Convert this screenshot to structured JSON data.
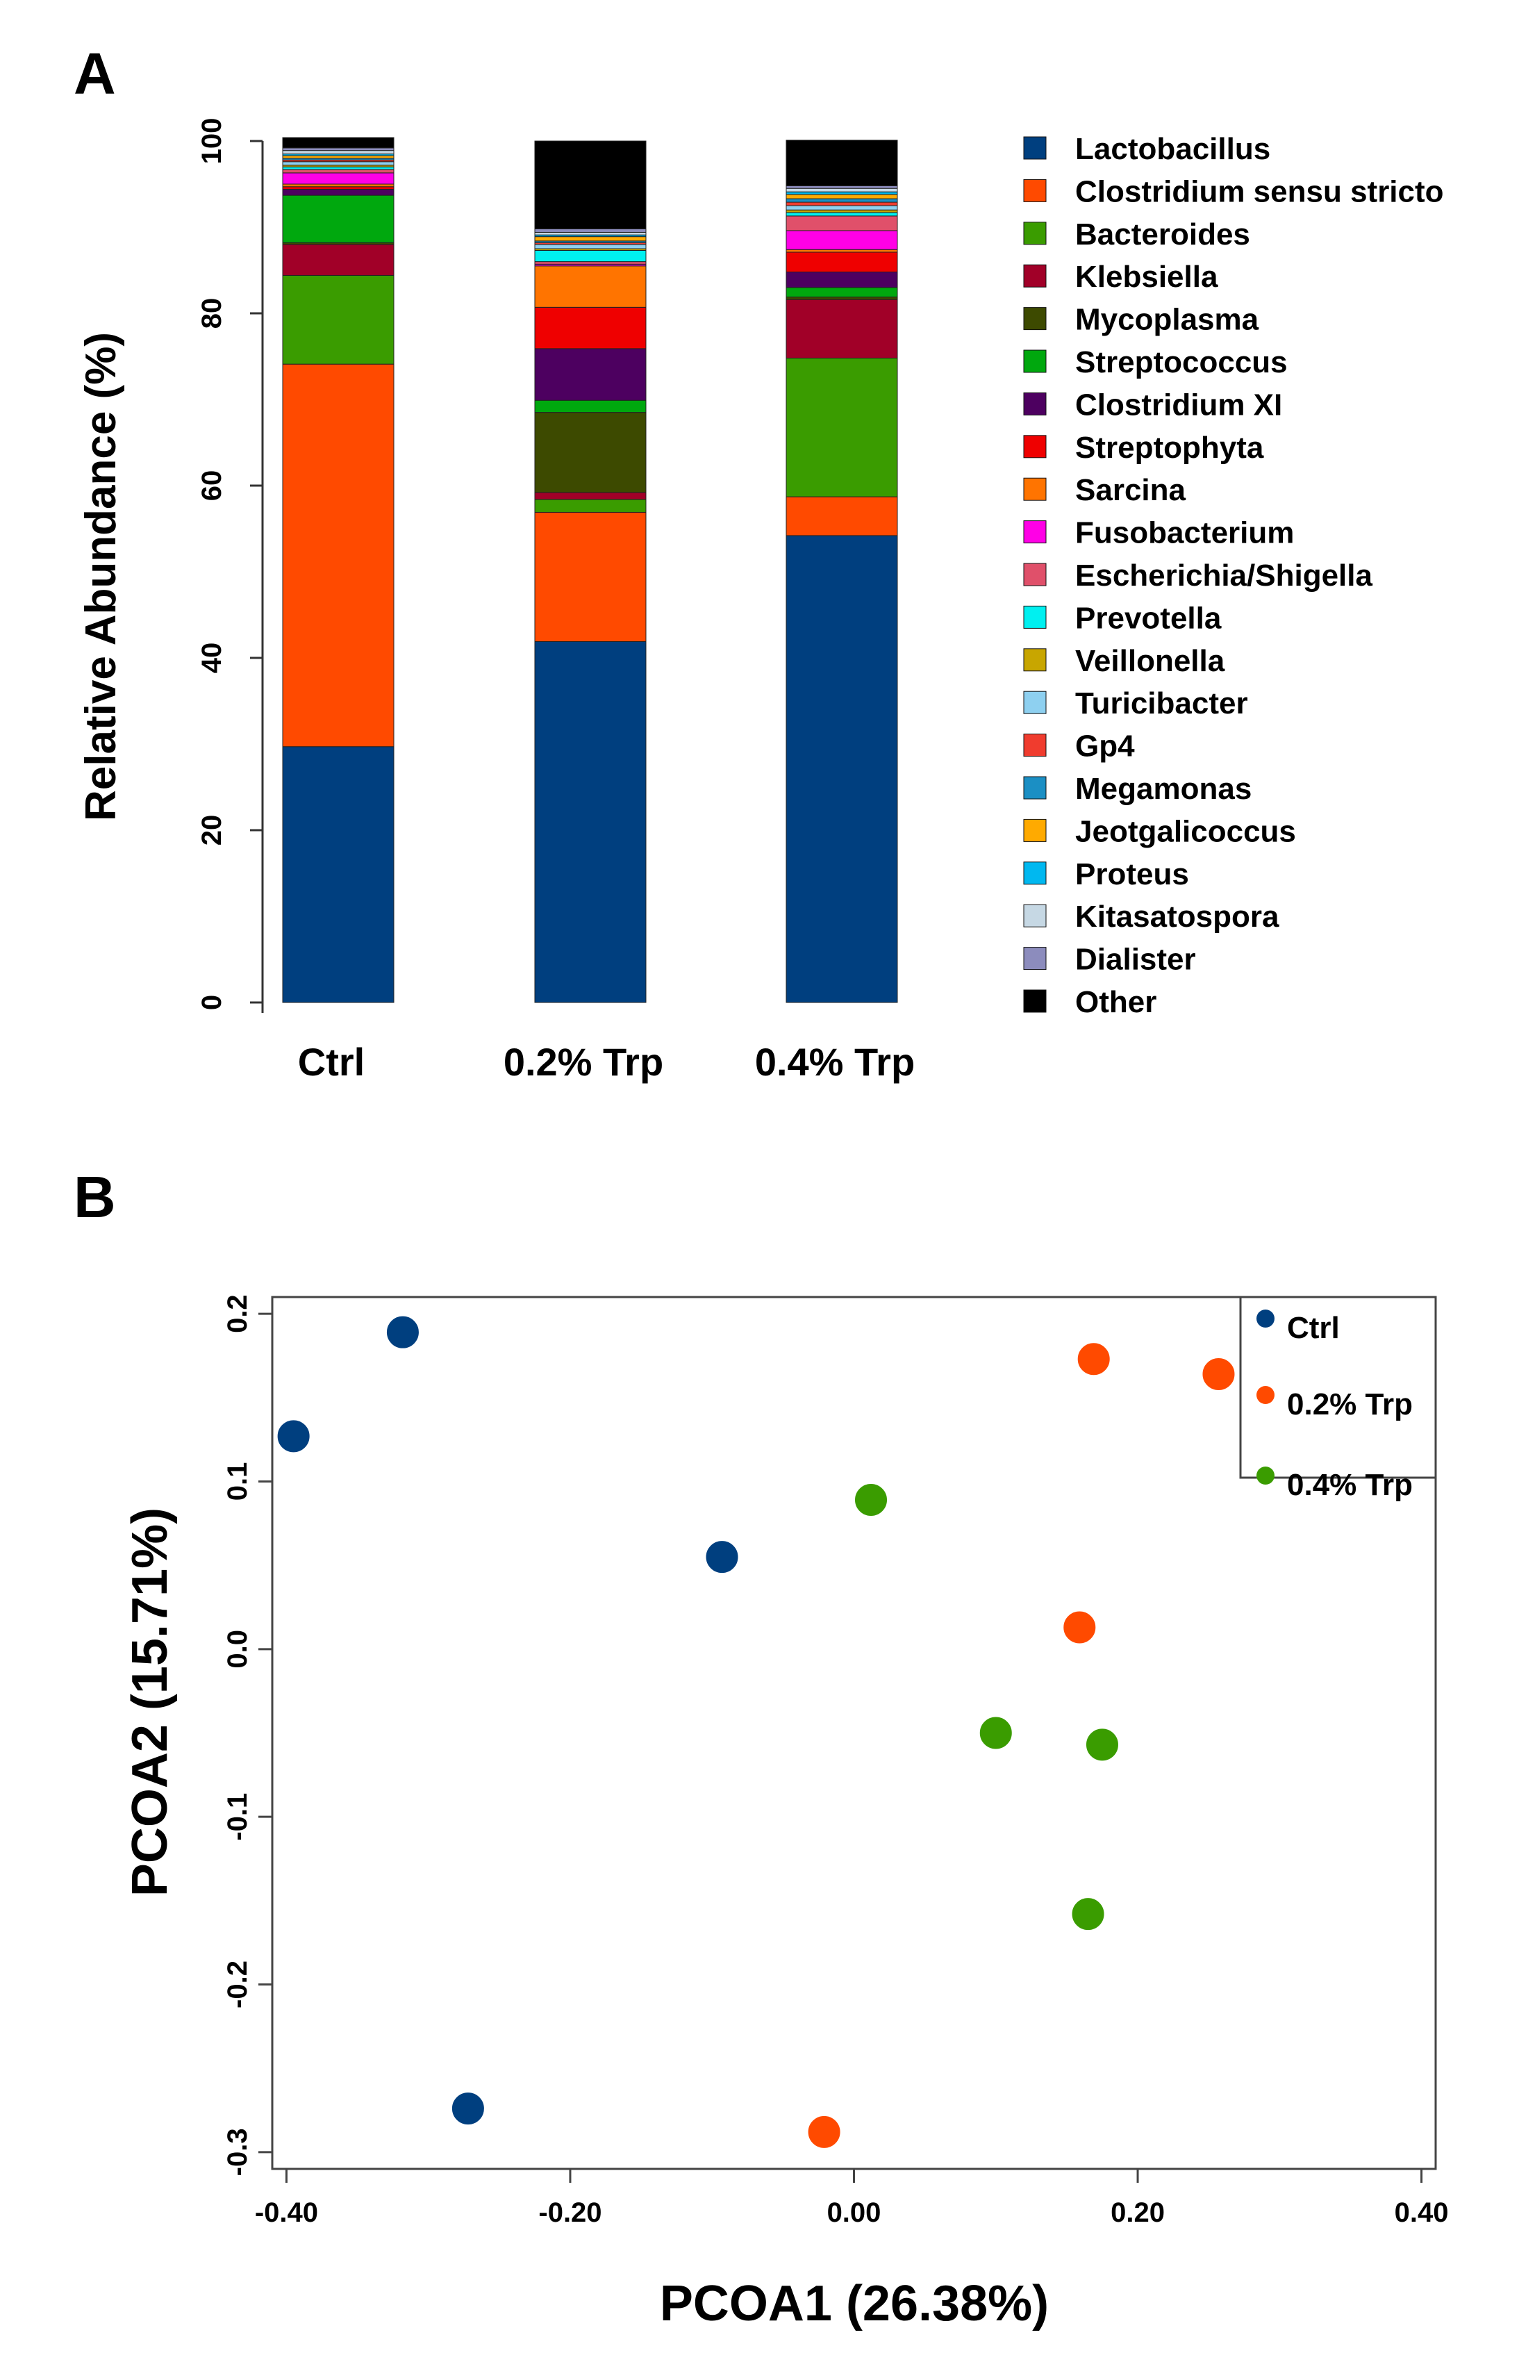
{
  "chart_data": [
    {
      "panel": "A",
      "type": "bar",
      "stacked": true,
      "title": "",
      "xlabel": "",
      "ylabel": "Relative Abundance (%)",
      "ylim": [
        0,
        100
      ],
      "yticks": [
        "0",
        "20",
        "40",
        "60",
        "80",
        "100"
      ],
      "categories": [
        "Ctrl",
        "0.2% Trp",
        "0.4% Trp"
      ],
      "series": [
        {
          "name": "Lactobacillus",
          "color": "#003f7f",
          "values": [
            29.7,
            41.9,
            54.2
          ]
        },
        {
          "name": "Clostridium sensu stricto",
          "color": "#ff4a00",
          "values": [
            44.4,
            15.0,
            4.5
          ]
        },
        {
          "name": "Bacteroides",
          "color": "#3a9c00",
          "values": [
            10.3,
            1.5,
            16.1
          ]
        },
        {
          "name": "Klebsiella",
          "color": "#a10028",
          "values": [
            3.6,
            0.8,
            6.8
          ]
        },
        {
          "name": "Mycoplasma",
          "color": "#3d4a00",
          "values": [
            0.2,
            9.3,
            0.3
          ]
        },
        {
          "name": "Streptococcus",
          "color": "#00a80e",
          "values": [
            5.5,
            1.4,
            1.1
          ]
        },
        {
          "name": "Clostridium XI",
          "color": "#4d0060",
          "values": [
            0.7,
            6.0,
            1.8
          ]
        },
        {
          "name": "Streptophyta",
          "color": "#ef0000",
          "values": [
            0.3,
            4.8,
            2.3
          ]
        },
        {
          "name": "Sarcina",
          "color": "#ff7400",
          "values": [
            0.3,
            4.8,
            0.3
          ]
        },
        {
          "name": "Fusobacterium",
          "color": "#ff00e6",
          "values": [
            1.3,
            0.2,
            2.2
          ]
        },
        {
          "name": "Escherichia/Shigella",
          "color": "#e0506a",
          "values": [
            0.4,
            0.3,
            1.7
          ]
        },
        {
          "name": "Prevotella",
          "color": "#00f0f0",
          "values": [
            0.3,
            1.3,
            0.4
          ]
        },
        {
          "name": "Veillonella",
          "color": "#c8a600",
          "values": [
            0.2,
            0.2,
            0.3
          ]
        },
        {
          "name": "Turicibacter",
          "color": "#8ed0f0",
          "values": [
            0.4,
            0.5,
            0.5
          ]
        },
        {
          "name": "Gp4",
          "color": "#f03c2e",
          "values": [
            0.2,
            0.2,
            0.4
          ]
        },
        {
          "name": "Megamonas",
          "color": "#1b8fc4",
          "values": [
            0.2,
            0.2,
            0.4
          ]
        },
        {
          "name": "Jeotgalicoccus",
          "color": "#ffaa00",
          "values": [
            0.3,
            0.5,
            0.5
          ]
        },
        {
          "name": "Proteus",
          "color": "#00b8f0",
          "values": [
            0.2,
            0.2,
            0.3
          ]
        },
        {
          "name": "Kitasatospora",
          "color": "#c6d8e4",
          "values": [
            0.4,
            0.3,
            0.4
          ]
        },
        {
          "name": "Dialister",
          "color": "#8c8cbd",
          "values": [
            0.3,
            0.4,
            0.3
          ]
        },
        {
          "name": "Other",
          "color": "#000000",
          "values": [
            1.2,
            10.2,
            5.3
          ]
        }
      ]
    },
    {
      "panel": "B",
      "type": "scatter",
      "title": "",
      "xlabel": "PCOA1 (26.38%)",
      "ylabel": "PCOA2 (15.71%)",
      "xlim": [
        -0.41,
        0.41
      ],
      "ylim": [
        -0.31,
        0.21
      ],
      "xticks": [
        {
          "value": -0.4,
          "label": "-0.40"
        },
        {
          "value": -0.2,
          "label": "-0.20"
        },
        {
          "value": 0.0,
          "label": "0.00"
        },
        {
          "value": 0.2,
          "label": "0.20"
        },
        {
          "value": 0.4,
          "label": "0.40"
        }
      ],
      "yticks": [
        {
          "value": -0.3,
          "label": "-0.3"
        },
        {
          "value": -0.2,
          "label": "-0.2"
        },
        {
          "value": -0.1,
          "label": "-0.1"
        },
        {
          "value": 0.0,
          "label": "0.0"
        },
        {
          "value": 0.1,
          "label": "0.1"
        },
        {
          "value": 0.2,
          "label": "0.2"
        }
      ],
      "legend_position": "top-right",
      "series": [
        {
          "name": "Ctrl",
          "color": "#003f7f",
          "points": [
            {
              "x": -0.395,
              "y": 0.127
            },
            {
              "x": -0.318,
              "y": 0.189
            },
            {
              "x": -0.093,
              "y": 0.055
            },
            {
              "x": -0.272,
              "y": -0.274
            }
          ]
        },
        {
          "name": "0.2% Trp",
          "color": "#ff4a00",
          "points": [
            {
              "x": 0.169,
              "y": 0.173
            },
            {
              "x": 0.257,
              "y": 0.164
            },
            {
              "x": 0.159,
              "y": 0.013
            },
            {
              "x": -0.021,
              "y": -0.288
            }
          ]
        },
        {
          "name": "0.4% Trp",
          "color": "#3a9c00",
          "points": [
            {
              "x": 0.012,
              "y": 0.089
            },
            {
              "x": 0.1,
              "y": -0.05
            },
            {
              "x": 0.175,
              "y": -0.057
            },
            {
              "x": 0.165,
              "y": -0.158
            }
          ]
        }
      ]
    }
  ],
  "labels": {
    "panel_a": "A",
    "panel_b": "B"
  }
}
